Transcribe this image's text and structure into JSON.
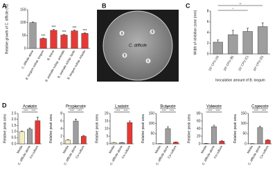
{
  "chart_data": [
    {
      "type": "bar",
      "panel": "A",
      "y_label": "Relative growth of C. difficile (%)",
      "categories": [
        "C. difficile alone",
        "B. longum subsp. longum",
        "B. breve",
        "B. animalis subsp. animalis",
        "B. animalis subsp. lactis",
        "B. longum subsp. infantis"
      ],
      "values": [
        100,
        38,
        70,
        52,
        68,
        58
      ],
      "errors": [
        2,
        2,
        3,
        2,
        3,
        2
      ],
      "colors": [
        "#9e9e9e",
        "#e53935",
        "#e53935",
        "#e53935",
        "#e53935",
        "#e53935"
      ],
      "annotations": [
        null,
        "***",
        "***",
        "***",
        "***",
        "***"
      ],
      "ylim": [
        0,
        150
      ],
      "yticks": [
        0,
        50,
        100,
        150
      ]
    },
    {
      "type": "bar",
      "panel": "C",
      "y_label": "Width of inhibition zone (mm)",
      "x_label": "Inoculation amount of B. longum",
      "categories": [
        "10⁵ CFU (A)",
        "10⁶ CFU (B)",
        "10⁷ CFU (C)",
        "10⁸ CFU (D)"
      ],
      "values": [
        2.2,
        3.6,
        4.2,
        5.1
      ],
      "errors": [
        0.4,
        0.8,
        0.6,
        0.7
      ],
      "colors": [
        "#9e9e9e",
        "#9e9e9e",
        "#9e9e9e",
        "#9e9e9e"
      ],
      "significance": [
        "*",
        "**"
      ],
      "ylim": [
        0,
        8
      ],
      "yticks": [
        0,
        2,
        4,
        6,
        8
      ]
    },
    {
      "type": "bar",
      "panel": "D",
      "title": "Acetate",
      "y_label": "Relative peak area",
      "categories": [
        "Media",
        "C. difficile alone",
        "Co-culture"
      ],
      "values": [
        1.0,
        1.2,
        1.9
      ],
      "errors": [
        0.05,
        0.1,
        0.3
      ],
      "colors": [
        "#f3efc4",
        "#9e9e9e",
        "#e53935"
      ],
      "significance": [
        "****",
        "****",
        "***"
      ],
      "ylim": [
        0,
        2.5
      ],
      "yticks": [
        {
          "value": 0,
          "label": "0.0"
        },
        {
          "value": 0.5,
          "label": "0.5"
        },
        {
          "value": 1,
          "label": "1.0"
        },
        {
          "value": 1.5,
          "label": "1.5"
        },
        {
          "value": 2,
          "label": "2.0"
        },
        {
          "value": 2.5,
          "label": "2.5"
        }
      ]
    },
    {
      "type": "bar",
      "title": "Propionate",
      "y_label": "Relative peak area",
      "categories": [
        "Media",
        "C. difficile alone",
        "Co-culture"
      ],
      "values": [
        1,
        6,
        2
      ],
      "errors": [
        0.1,
        0.5,
        0.2
      ],
      "colors": [
        "#f3efc4",
        "#9e9e9e",
        "#e53935"
      ],
      "significance": [
        "****",
        "****",
        "****"
      ],
      "ylim": [
        0,
        8
      ],
      "yticks": [
        0,
        2,
        4,
        6,
        8
      ]
    },
    {
      "type": "bar",
      "title": "Lactate",
      "y_label": "Relative peak area",
      "categories": [
        "Media",
        "C. difficile alone",
        "Co-culture"
      ],
      "values": [
        0.8,
        0.8,
        14
      ],
      "errors": [
        0.1,
        0.1,
        1
      ],
      "colors": [
        "#f3efc4",
        "#9e9e9e",
        "#e53935"
      ],
      "significance": [
        "****",
        "****",
        "****"
      ],
      "ylim": [
        0,
        20
      ],
      "yticks": [
        0,
        5,
        10,
        15,
        20
      ]
    },
    {
      "type": "bar",
      "title": "Butyrate",
      "y_label": "Relative peak area",
      "categories": [
        "Media",
        "C. difficile alone",
        "Co-culture"
      ],
      "values": [
        1,
        75,
        8
      ],
      "errors": [
        0.2,
        8,
        1
      ],
      "colors": [
        "#f3efc4",
        "#9e9e9e",
        "#e53935"
      ],
      "significance": [
        "****",
        "****",
        "****"
      ],
      "ylim": [
        0,
        150
      ],
      "yticks": [
        0,
        50,
        100,
        150
      ]
    },
    {
      "type": "bar",
      "title": "Valerate",
      "y_label": "Relative peak area",
      "categories": [
        "Media",
        "C. difficile alone",
        "Co-culture"
      ],
      "values": [
        1,
        45,
        7
      ],
      "errors": [
        0.2,
        4,
        1
      ],
      "colors": [
        "#f3efc4",
        "#9e9e9e",
        "#e53935"
      ],
      "significance": [
        "****",
        "****",
        "****"
      ],
      "ylim": [
        0,
        80
      ],
      "yticks": [
        0,
        20,
        40,
        60,
        80
      ]
    },
    {
      "type": "bar",
      "title": "Caproate",
      "y_label": "Relative peak area",
      "categories": [
        "Media",
        "C. difficile alone",
        "Co-culture"
      ],
      "values": [
        1,
        80,
        18
      ],
      "errors": [
        0.2,
        6,
        2
      ],
      "colors": [
        "#f3efc4",
        "#9e9e9e",
        "#e53935"
      ],
      "significance": [
        "****",
        "****",
        "****"
      ],
      "ylim": [
        0,
        150
      ],
      "yticks": [
        0,
        50,
        100,
        150
      ]
    }
  ],
  "plate": {
    "panel": "B",
    "wells": [
      "a",
      "b",
      "c",
      "d"
    ],
    "organism": "C. difficile"
  }
}
